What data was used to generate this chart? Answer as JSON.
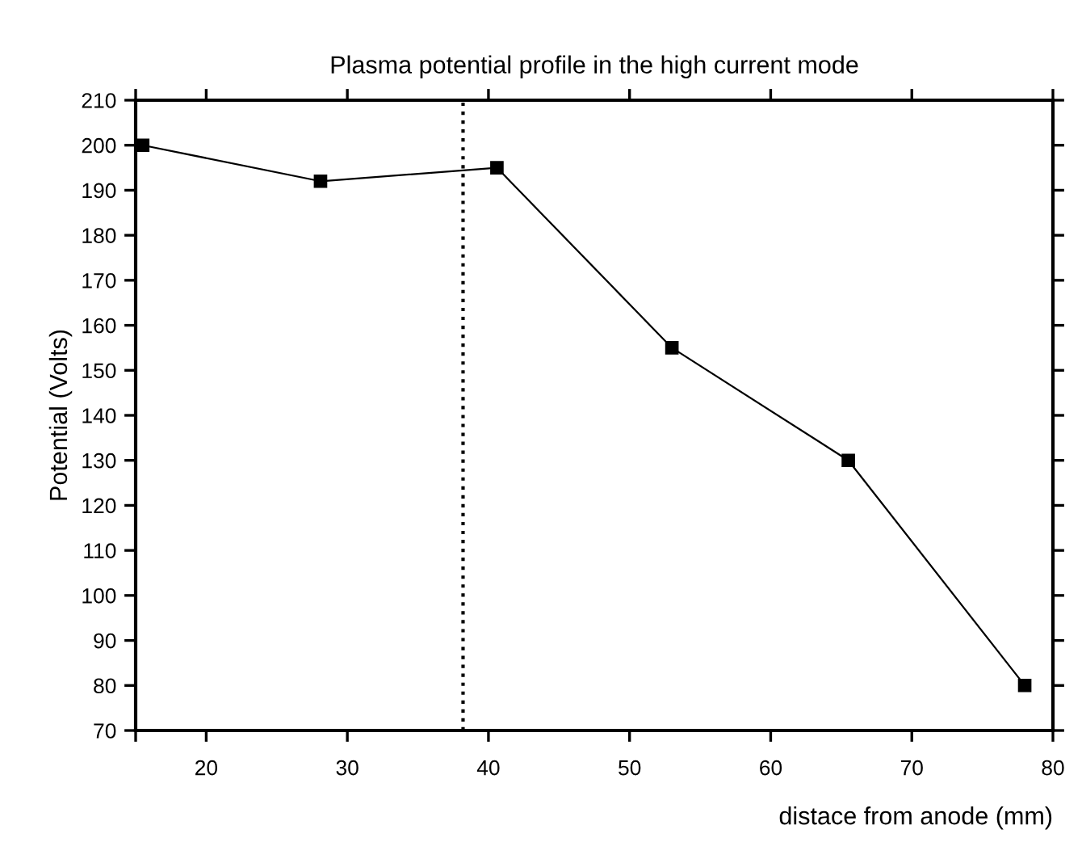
{
  "chart_data": {
    "type": "line",
    "title": "Plasma potential profile in the high current mode",
    "xlabel": "distace from anode (mm)",
    "ylabel": "Potential (Volts)",
    "x": [
      15.5,
      28.1,
      40.6,
      53.0,
      65.5,
      78.0
    ],
    "series": [
      {
        "color": "#000000",
        "values": [
          200,
          192,
          195,
          155,
          130,
          80
        ]
      }
    ],
    "marker": "square",
    "line_style": "solid",
    "grid": false,
    "xlim": [
      15,
      80
    ],
    "xticks": [
      {
        "value": 15,
        "label": null
      },
      20,
      30,
      40,
      50,
      60,
      70,
      80
    ],
    "ylim": [
      70,
      210
    ],
    "yticks": [
      70,
      80,
      90,
      100,
      110,
      120,
      130,
      140,
      150,
      160,
      170,
      180,
      190,
      200,
      210
    ],
    "ref_lines": [
      {
        "axis": "x",
        "value": 38.2,
        "color": "#000000",
        "line_style": "dotted"
      }
    ]
  }
}
